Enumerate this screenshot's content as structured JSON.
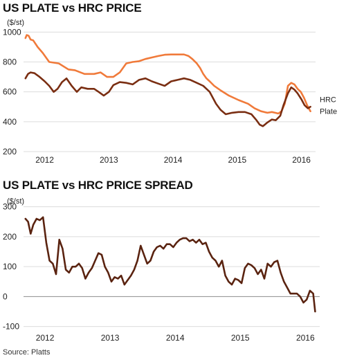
{
  "source": "Source: Platts",
  "chart_data": [
    {
      "type": "line",
      "title": "US PLATE vs HRC PRICE",
      "unit_label": "($/st)",
      "xlabel": "",
      "ylabel": "",
      "x_ticks": [
        "2012",
        "2013",
        "2014",
        "2015",
        "2016"
      ],
      "y_ticks": [
        200,
        400,
        600,
        800,
        1000
      ],
      "ylim": [
        200,
        1020
      ],
      "xlim": [
        2011.75,
        2016.3
      ],
      "grid": true,
      "colors": {
        "Plate": "#f07a3a",
        "HRC": "#7a2e12"
      },
      "series": [
        {
          "name": "Plate",
          "x": [
            2011.78,
            2011.8,
            2011.83,
            2011.86,
            2011.9,
            2011.97,
            2012.05,
            2012.15,
            2012.3,
            2012.45,
            2012.55,
            2012.7,
            2012.85,
            2012.95,
            2013.05,
            2013.15,
            2013.25,
            2013.35,
            2013.45,
            2013.55,
            2013.65,
            2013.75,
            2013.85,
            2013.95,
            2014.05,
            2014.15,
            2014.25,
            2014.32,
            2014.38,
            2014.45,
            2014.5,
            2014.55,
            2014.6,
            2014.65,
            2014.72,
            2014.82,
            2014.95,
            2015.1,
            2015.25,
            2015.35,
            2015.45,
            2015.55,
            2015.62,
            2015.67,
            2015.72,
            2015.77,
            2015.82,
            2015.87,
            2015.92,
            2015.97,
            2016.02,
            2016.07,
            2016.12,
            2016.17,
            2016.22
          ],
          "y": [
            960,
            980,
            975,
            950,
            945,
            900,
            860,
            800,
            790,
            750,
            745,
            720,
            720,
            730,
            700,
            700,
            730,
            790,
            800,
            805,
            820,
            830,
            840,
            848,
            850,
            850,
            850,
            840,
            820,
            790,
            760,
            720,
            690,
            670,
            640,
            610,
            575,
            545,
            520,
            490,
            470,
            460,
            465,
            460,
            455,
            470,
            520,
            640,
            660,
            650,
            620,
            600,
            560,
            510,
            470
          ]
        },
        {
          "name": "HRC",
          "x": [
            2011.78,
            2011.82,
            2011.86,
            2011.92,
            2012.0,
            2012.08,
            2012.15,
            2012.22,
            2012.28,
            2012.35,
            2012.42,
            2012.5,
            2012.58,
            2012.65,
            2012.75,
            2012.85,
            2012.92,
            2013.0,
            2013.08,
            2013.15,
            2013.25,
            2013.35,
            2013.45,
            2013.55,
            2013.65,
            2013.75,
            2013.85,
            2013.95,
            2014.05,
            2014.15,
            2014.25,
            2014.35,
            2014.45,
            2014.55,
            2014.65,
            2014.75,
            2014.82,
            2014.9,
            2015.0,
            2015.1,
            2015.2,
            2015.3,
            2015.38,
            2015.43,
            2015.48,
            2015.55,
            2015.62,
            2015.68,
            2015.75,
            2015.8,
            2015.87,
            2015.92,
            2015.97,
            2016.02,
            2016.08,
            2016.13,
            2016.18,
            2016.22
          ],
          "y": [
            690,
            720,
            730,
            725,
            700,
            670,
            640,
            600,
            620,
            665,
            690,
            640,
            600,
            630,
            620,
            620,
            600,
            575,
            600,
            645,
            665,
            660,
            650,
            680,
            690,
            670,
            655,
            640,
            670,
            680,
            690,
            680,
            660,
            640,
            600,
            520,
            480,
            450,
            460,
            465,
            465,
            450,
            410,
            380,
            370,
            395,
            415,
            410,
            440,
            510,
            590,
            630,
            615,
            590,
            550,
            510,
            490,
            500
          ]
        }
      ]
    },
    {
      "type": "line",
      "title": "US PLATE vs HRC PRICE SPREAD",
      "unit_label": "($/st)",
      "xlabel": "",
      "ylabel": "",
      "x_ticks": [
        "2012",
        "2013",
        "2014",
        "2015",
        "2016"
      ],
      "y_ticks": [
        -100,
        0,
        100,
        200,
        300
      ],
      "ylim": [
        -110,
        320
      ],
      "xlim": [
        2011.75,
        2016.3
      ],
      "grid": true,
      "colors": {
        "Spread": "#5a2310"
      },
      "series": [
        {
          "name": "",
          "x": [
            2011.78,
            2011.82,
            2011.86,
            2011.9,
            2011.95,
            2012.0,
            2012.05,
            2012.1,
            2012.15,
            2012.2,
            2012.25,
            2012.3,
            2012.35,
            2012.4,
            2012.45,
            2012.5,
            2012.55,
            2012.6,
            2012.65,
            2012.7,
            2012.75,
            2012.8,
            2012.85,
            2012.9,
            2012.95,
            2013.0,
            2013.05,
            2013.1,
            2013.15,
            2013.2,
            2013.25,
            2013.3,
            2013.35,
            2013.4,
            2013.45,
            2013.5,
            2013.55,
            2013.6,
            2013.65,
            2013.7,
            2013.75,
            2013.8,
            2013.85,
            2013.9,
            2013.95,
            2014.0,
            2014.05,
            2014.1,
            2014.15,
            2014.2,
            2014.25,
            2014.3,
            2014.35,
            2014.4,
            2014.45,
            2014.5,
            2014.55,
            2014.6,
            2014.65,
            2014.7,
            2014.75,
            2014.8,
            2014.85,
            2014.9,
            2014.95,
            2015.0,
            2015.05,
            2015.1,
            2015.15,
            2015.2,
            2015.25,
            2015.3,
            2015.35,
            2015.4,
            2015.45,
            2015.5,
            2015.55,
            2015.6,
            2015.65,
            2015.7,
            2015.75,
            2015.8,
            2015.85,
            2015.9,
            2015.95,
            2016.0,
            2016.05,
            2016.1,
            2016.15,
            2016.2,
            2016.23
          ],
          "y": [
            260,
            250,
            210,
            240,
            260,
            255,
            265,
            180,
            120,
            110,
            75,
            190,
            160,
            90,
            80,
            100,
            100,
            110,
            95,
            60,
            80,
            95,
            120,
            145,
            140,
            100,
            80,
            50,
            65,
            60,
            70,
            40,
            55,
            70,
            90,
            120,
            170,
            140,
            110,
            120,
            150,
            165,
            170,
            160,
            175,
            175,
            165,
            180,
            190,
            195,
            195,
            185,
            190,
            180,
            190,
            175,
            180,
            150,
            130,
            120,
            100,
            120,
            70,
            50,
            40,
            60,
            55,
            45,
            95,
            110,
            105,
            95,
            75,
            90,
            60,
            110,
            100,
            115,
            120,
            80,
            50,
            30,
            10,
            10,
            10,
            0,
            -20,
            -10,
            20,
            10,
            -50
          ]
        }
      ]
    }
  ]
}
